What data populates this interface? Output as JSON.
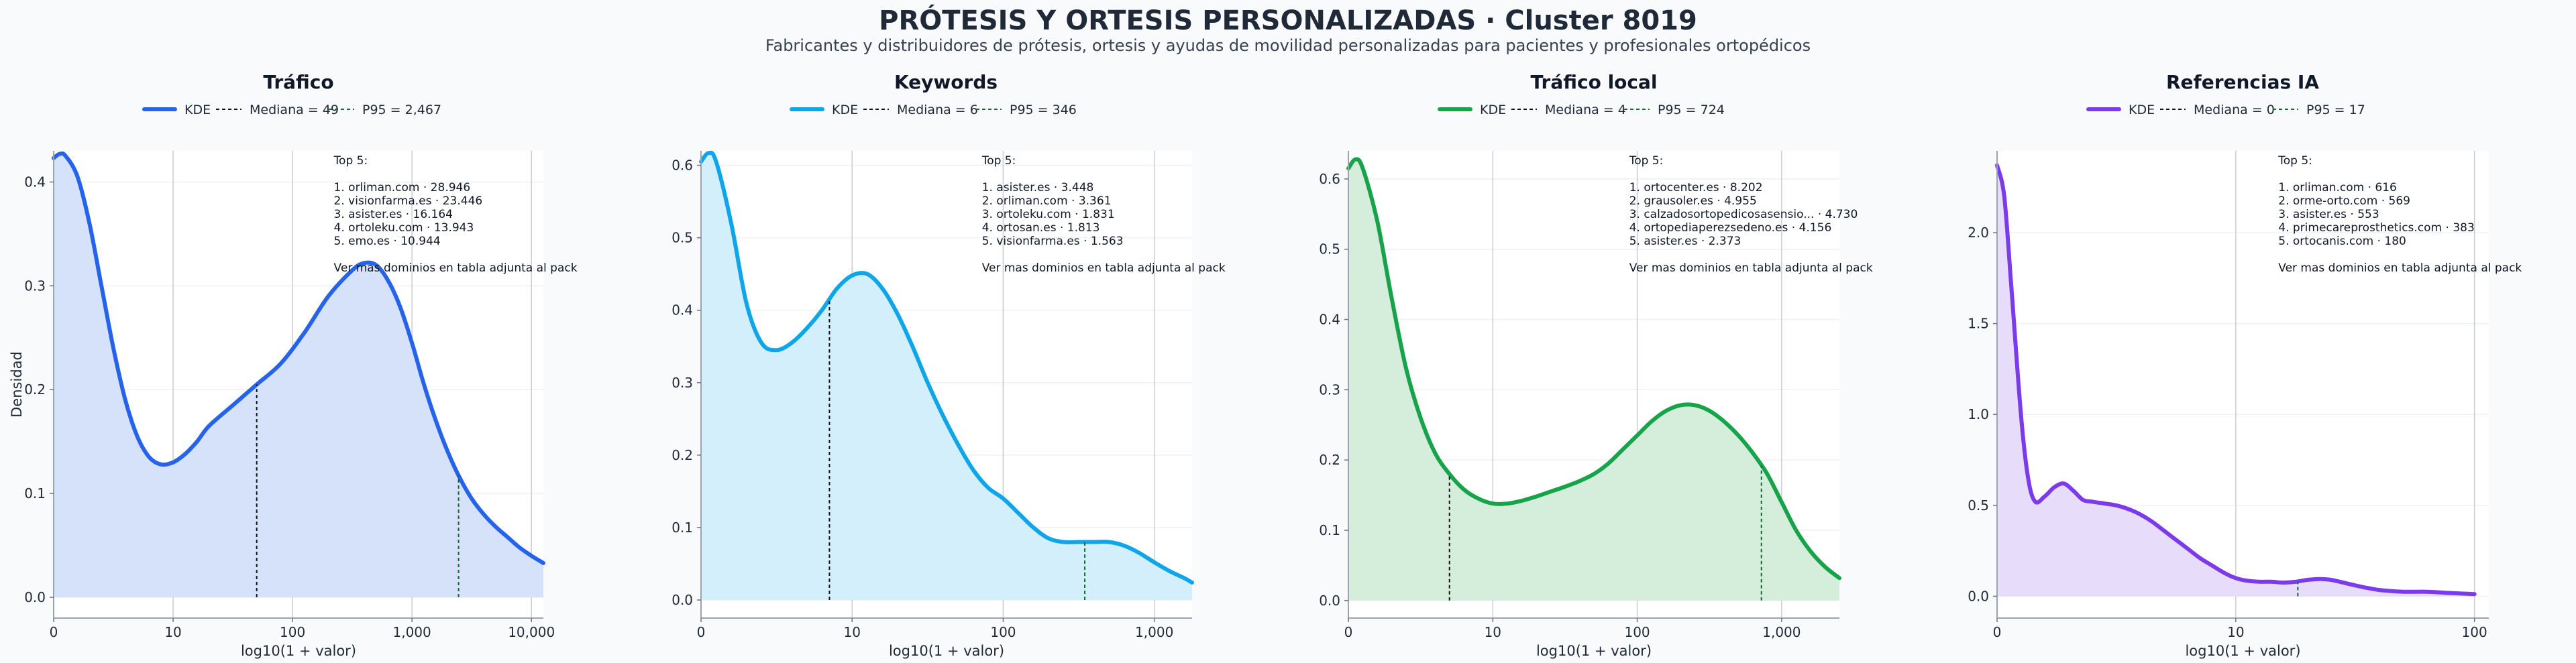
{
  "header": {
    "title": "PRÓTESIS Y ORTESIS PERSONALIZADAS · Cluster 8019",
    "subtitle": "Fabricantes y distribuidores de prótesis, ortesis y ayudas de movilidad personalizadas para pacientes y profesionales ortopédicos"
  },
  "chart_data": [
    {
      "type": "area",
      "title": "Tráfico",
      "color": "#2563eb",
      "fill": "#d6e1fa",
      "xlabel": "log10(1 + valor)",
      "ylabel": "Densidad",
      "xlim": [
        0,
        4.1
      ],
      "ylim": [
        -0.02,
        0.43
      ],
      "xticks": [
        0,
        1,
        2,
        3,
        4
      ],
      "xtick_labels": [
        "0",
        "10",
        "100",
        "1,000",
        "10,000"
      ],
      "yticks": [
        0.0,
        0.1,
        0.2,
        0.3,
        0.4
      ],
      "ytick_labels": [
        "0.0",
        "0.1",
        "0.2",
        "0.3",
        "0.4"
      ],
      "legend": [
        "KDE",
        "Mediana = 49",
        "P95 = 2,467"
      ],
      "median_x": 1.7,
      "p95_x": 3.39,
      "x": [
        0,
        0.05,
        0.1,
        0.2,
        0.3,
        0.4,
        0.5,
        0.6,
        0.7,
        0.8,
        0.9,
        1.0,
        1.1,
        1.2,
        1.3,
        1.5,
        1.7,
        1.9,
        2.1,
        2.3,
        2.5,
        2.6,
        2.7,
        2.8,
        2.9,
        3.0,
        3.1,
        3.2,
        3.3,
        3.4,
        3.5,
        3.6,
        3.7,
        3.8,
        3.9,
        4.0,
        4.1
      ],
      "y": [
        0.423,
        0.427,
        0.425,
        0.405,
        0.36,
        0.3,
        0.24,
        0.19,
        0.155,
        0.135,
        0.128,
        0.13,
        0.138,
        0.15,
        0.165,
        0.185,
        0.205,
        0.225,
        0.255,
        0.29,
        0.315,
        0.322,
        0.32,
        0.305,
        0.28,
        0.245,
        0.205,
        0.17,
        0.14,
        0.115,
        0.095,
        0.08,
        0.068,
        0.058,
        0.048,
        0.04,
        0.033
      ],
      "annotation": [
        "Top 5:",
        "",
        "1. orliman.com · 28.946",
        "2. visionfarma.es · 23.446",
        "3. asister.es · 16.164",
        "4. ortoleku.com · 13.943",
        "5. emo.es · 10.944",
        "",
        "Ver mas dominios en tabla adjunta al pack"
      ]
    },
    {
      "type": "area",
      "title": "Keywords",
      "color": "#0ea5e9",
      "fill": "#d3effb",
      "xlabel": "log10(1 + valor)",
      "ylabel": "",
      "xlim": [
        0,
        3.25
      ],
      "ylim": [
        -0.025,
        0.62
      ],
      "xticks": [
        0,
        1,
        2,
        3
      ],
      "xtick_labels": [
        "0",
        "10",
        "100",
        "1,000"
      ],
      "yticks": [
        0.0,
        0.1,
        0.2,
        0.3,
        0.4,
        0.5,
        0.6
      ],
      "ytick_labels": [
        "0.0",
        "0.1",
        "0.2",
        "0.3",
        "0.4",
        "0.5",
        "0.6"
      ],
      "legend": [
        "KDE",
        "Mediana = 6",
        "P95 = 346"
      ],
      "median_x": 0.85,
      "p95_x": 2.54,
      "x": [
        0,
        0.05,
        0.1,
        0.2,
        0.3,
        0.4,
        0.5,
        0.6,
        0.7,
        0.8,
        0.9,
        1.0,
        1.1,
        1.2,
        1.3,
        1.4,
        1.5,
        1.6,
        1.7,
        1.8,
        1.9,
        2.0,
        2.1,
        2.2,
        2.3,
        2.4,
        2.5,
        2.6,
        2.7,
        2.8,
        2.9,
        3.0,
        3.1,
        3.2,
        3.25
      ],
      "y": [
        0.605,
        0.617,
        0.605,
        0.52,
        0.41,
        0.355,
        0.345,
        0.355,
        0.375,
        0.4,
        0.43,
        0.448,
        0.45,
        0.43,
        0.395,
        0.35,
        0.3,
        0.255,
        0.215,
        0.18,
        0.155,
        0.14,
        0.12,
        0.1,
        0.085,
        0.08,
        0.08,
        0.08,
        0.08,
        0.075,
        0.065,
        0.052,
        0.04,
        0.03,
        0.024
      ],
      "annotation": [
        "Top 5:",
        "",
        "1. asister.es · 3.448",
        "2. orliman.com · 3.361",
        "3. ortoleku.com · 1.831",
        "4. ortosan.es · 1.813",
        "5. visionfarma.es · 1.563",
        "",
        "Ver mas dominios en tabla adjunta al pack"
      ]
    },
    {
      "type": "area",
      "title": "Tráfico local",
      "color": "#16a34a",
      "fill": "#d4eedb",
      "xlabel": "log10(1 + valor)",
      "ylabel": "",
      "xlim": [
        0,
        3.4
      ],
      "ylim": [
        -0.025,
        0.64
      ],
      "xticks": [
        0,
        1,
        2,
        3
      ],
      "xtick_labels": [
        "0",
        "10",
        "100",
        "1,000"
      ],
      "yticks": [
        0.0,
        0.1,
        0.2,
        0.3,
        0.4,
        0.5,
        0.6
      ],
      "ytick_labels": [
        "0.0",
        "0.1",
        "0.2",
        "0.3",
        "0.4",
        "0.5",
        "0.6"
      ],
      "legend": [
        "KDE",
        "Mediana = 4",
        "P95 = 724"
      ],
      "median_x": 0.7,
      "p95_x": 2.86,
      "x": [
        0,
        0.05,
        0.1,
        0.2,
        0.3,
        0.4,
        0.5,
        0.6,
        0.7,
        0.8,
        0.9,
        1.0,
        1.1,
        1.2,
        1.3,
        1.4,
        1.5,
        1.6,
        1.7,
        1.8,
        1.9,
        2.0,
        2.1,
        2.2,
        2.3,
        2.4,
        2.5,
        2.6,
        2.7,
        2.8,
        2.9,
        3.0,
        3.1,
        3.2,
        3.3,
        3.4
      ],
      "y": [
        0.615,
        0.628,
        0.615,
        0.54,
        0.43,
        0.33,
        0.26,
        0.21,
        0.18,
        0.158,
        0.145,
        0.138,
        0.138,
        0.142,
        0.148,
        0.155,
        0.162,
        0.17,
        0.18,
        0.195,
        0.215,
        0.235,
        0.255,
        0.27,
        0.278,
        0.278,
        0.27,
        0.255,
        0.235,
        0.21,
        0.18,
        0.14,
        0.1,
        0.07,
        0.048,
        0.032
      ],
      "annotation": [
        "Top 5:",
        "",
        "1. ortocenter.es · 8.202",
        "2. grausoler.es · 4.955",
        "3. calzadosortopedicosasensio... · 4.730",
        "4. ortopediaperezsedeno.es · 4.156",
        "5. asister.es · 2.373",
        "",
        "Ver mas dominios en tabla adjunta al pack"
      ]
    },
    {
      "type": "area",
      "title": "Referencias IA",
      "color": "#7c3aed",
      "fill": "#e7dcf9",
      "xlabel": "log10(1 + valor)",
      "ylabel": "",
      "xlim": [
        0,
        2.06
      ],
      "ylim": [
        -0.12,
        2.45
      ],
      "xticks": [
        0,
        1,
        2
      ],
      "xtick_labels": [
        "0",
        "10",
        "100"
      ],
      "yticks": [
        0.0,
        0.5,
        1.0,
        1.5,
        2.0
      ],
      "ytick_labels": [
        "0.0",
        "0.5",
        "1.0",
        "1.5",
        "2.0"
      ],
      "legend": [
        "KDE",
        "Mediana = 0",
        "P95 = 17"
      ],
      "median_x": 0.0,
      "p95_x": 1.26,
      "x": [
        0,
        0.03,
        0.06,
        0.1,
        0.13,
        0.16,
        0.2,
        0.24,
        0.28,
        0.32,
        0.36,
        0.4,
        0.45,
        0.5,
        0.55,
        0.6,
        0.65,
        0.7,
        0.75,
        0.8,
        0.85,
        0.9,
        0.95,
        1.0,
        1.05,
        1.1,
        1.15,
        1.2,
        1.25,
        1.3,
        1.35,
        1.4,
        1.5,
        1.6,
        1.7,
        1.8,
        1.9,
        2.0
      ],
      "y": [
        2.37,
        2.2,
        1.7,
        1.0,
        0.65,
        0.52,
        0.55,
        0.6,
        0.62,
        0.58,
        0.53,
        0.52,
        0.51,
        0.5,
        0.48,
        0.45,
        0.41,
        0.36,
        0.31,
        0.26,
        0.21,
        0.17,
        0.13,
        0.1,
        0.085,
        0.08,
        0.08,
        0.075,
        0.08,
        0.09,
        0.095,
        0.09,
        0.06,
        0.035,
        0.025,
        0.025,
        0.018,
        0.012
      ],
      "annotation": [
        "Top 5:",
        "",
        "1. orliman.com · 616",
        "2. orme-orto.com · 569",
        "3. asister.es · 553",
        "4. primecareprosthetics.com · 383",
        "5. ortocanis.com · 180",
        "",
        "Ver mas dominios en tabla adjunta al pack"
      ]
    }
  ]
}
